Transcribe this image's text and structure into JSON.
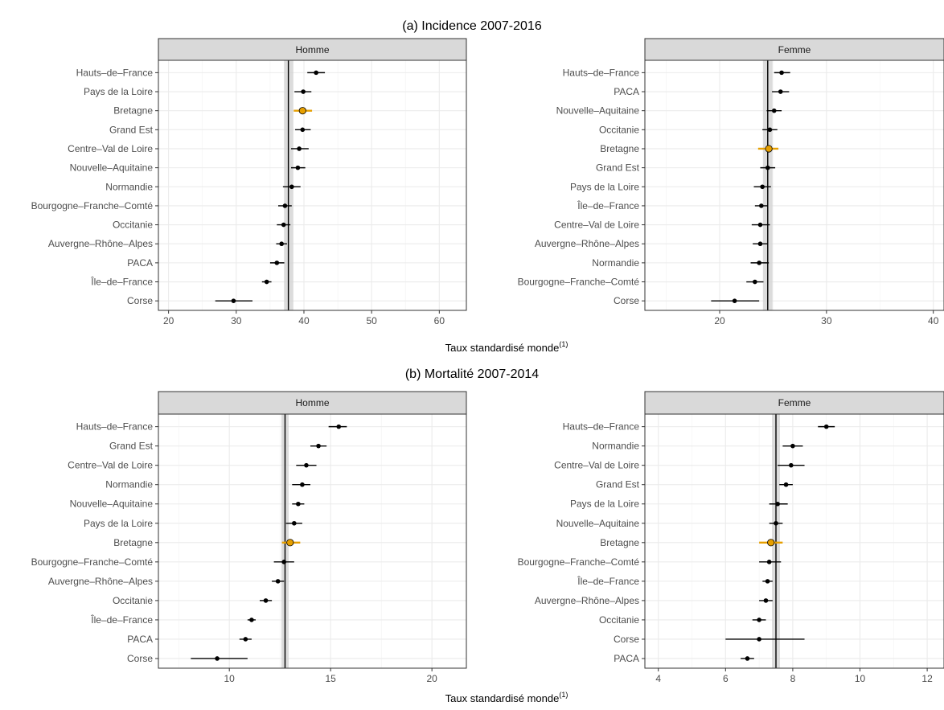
{
  "colors": {
    "highlight": "#E69F00",
    "point": "#000000",
    "strip_bg": "#D9D9D9",
    "grid": "#EBEBEB",
    "ref_band": "#D3D3D3"
  },
  "sections": [
    {
      "title": "(a) Incidence 2007-2016",
      "xlabel": "Taux standardisé monde",
      "xlabel_sup": "(1)"
    },
    {
      "title": "(b) Mortalité 2007-2014",
      "xlabel": "Taux standardisé monde",
      "xlabel_sup": "(1)"
    }
  ],
  "chart_data": [
    {
      "type": "dot-errorbar",
      "section": "(a) Incidence 2007-2016",
      "panel": "Homme",
      "xlim": [
        18.5,
        64
      ],
      "xticks": [
        20,
        30,
        40,
        50,
        60
      ],
      "reference": {
        "value": 37.7,
        "low": 37.3,
        "high": 38.2
      },
      "highlight": "Bretagne",
      "categories": [
        "Hauts–de–France",
        "Pays de la Loire",
        "Bretagne",
        "Grand Est",
        "Centre–Val de Loire",
        "Nouvelle–Aquitaine",
        "Normandie",
        "Bourgogne–Franche–Comté",
        "Occitanie",
        "Auvergne–Rhône–Alpes",
        "PACA",
        "Île–de–France",
        "Corse"
      ],
      "values": [
        41.8,
        39.9,
        39.8,
        39.8,
        39.3,
        39.1,
        38.2,
        37.2,
        37.0,
        36.7,
        36.0,
        34.5,
        29.6
      ],
      "low": [
        40.5,
        38.6,
        38.5,
        38.7,
        38.1,
        38.1,
        36.9,
        36.2,
        36.0,
        35.9,
        35.0,
        33.8,
        26.9
      ],
      "high": [
        43.1,
        41.1,
        41.2,
        41.0,
        40.7,
        40.2,
        39.5,
        38.2,
        38.0,
        37.5,
        37.1,
        35.2,
        32.4
      ]
    },
    {
      "type": "dot-errorbar",
      "section": "(a) Incidence 2007-2016",
      "panel": "Femme",
      "xlim": [
        13,
        41
      ],
      "xticks": [
        20,
        30,
        40
      ],
      "reference": {
        "value": 24.5,
        "low": 24.2,
        "high": 24.8
      },
      "highlight": "Bretagne",
      "categories": [
        "Hauts–de–France",
        "PACA",
        "Nouvelle–Aquitaine",
        "Occitanie",
        "Bretagne",
        "Grand Est",
        "Pays de la Loire",
        "Île–de–France",
        "Centre–Val de Loire",
        "Auvergne–Rhône–Alpes",
        "Normandie",
        "Bourgogne–Franche–Comté",
        "Corse"
      ],
      "values": [
        25.8,
        25.7,
        25.1,
        24.7,
        24.6,
        24.5,
        24.0,
        23.9,
        23.8,
        23.8,
        23.7,
        23.3,
        21.4
      ],
      "low": [
        25.1,
        24.9,
        24.4,
        24.0,
        23.6,
        23.8,
        23.2,
        23.3,
        23.0,
        23.1,
        22.9,
        22.5,
        19.2
      ],
      "high": [
        26.6,
        26.5,
        25.8,
        25.4,
        25.5,
        25.2,
        24.8,
        24.5,
        24.7,
        24.5,
        24.6,
        24.1,
        23.7
      ]
    },
    {
      "type": "dot-errorbar",
      "section": "(b) Mortalité 2007-2014",
      "panel": "Homme",
      "xlim": [
        6.5,
        21.7
      ],
      "xticks": [
        10,
        15,
        20
      ],
      "reference": {
        "value": 12.75,
        "low": 12.65,
        "high": 12.85
      },
      "highlight": "Bretagne",
      "categories": [
        "Hauts–de–France",
        "Grand Est",
        "Centre–Val de Loire",
        "Normandie",
        "Nouvelle–Aquitaine",
        "Pays de la Loire",
        "Bretagne",
        "Bourgogne–Franche–Comté",
        "Auvergne–Rhône–Alpes",
        "Occitanie",
        "Île–de–France",
        "PACA",
        "Corse"
      ],
      "values": [
        15.4,
        14.4,
        13.8,
        13.6,
        13.4,
        13.2,
        13.0,
        12.7,
        12.4,
        11.8,
        11.1,
        10.8,
        9.4
      ],
      "low": [
        14.9,
        14.0,
        13.3,
        13.1,
        13.1,
        12.8,
        12.6,
        12.2,
        12.1,
        11.5,
        10.9,
        10.5,
        8.1
      ],
      "high": [
        15.8,
        14.8,
        14.3,
        14.0,
        13.7,
        13.6,
        13.5,
        13.2,
        12.7,
        12.1,
        11.3,
        11.1,
        10.9
      ]
    },
    {
      "type": "dot-errorbar",
      "section": "(b) Mortalité 2007-2014",
      "panel": "Femme",
      "xlim": [
        3.6,
        12.5
      ],
      "xticks": [
        4,
        6,
        8,
        10,
        12
      ],
      "reference": {
        "value": 7.5,
        "low": 7.43,
        "high": 7.57
      },
      "highlight": "Bretagne",
      "categories": [
        "Hauts–de–France",
        "Normandie",
        "Centre–Val de Loire",
        "Grand Est",
        "Pays de la Loire",
        "Nouvelle–Aquitaine",
        "Bretagne",
        "Bourgogne–Franche–Comté",
        "Île–de–France",
        "Auvergne–Rhône–Alpes",
        "Occitanie",
        "Corse",
        "PACA"
      ],
      "values": [
        9.0,
        8.0,
        7.95,
        7.8,
        7.55,
        7.5,
        7.35,
        7.3,
        7.25,
        7.2,
        7.0,
        7.0,
        6.65
      ],
      "low": [
        8.75,
        7.7,
        7.55,
        7.6,
        7.3,
        7.3,
        7.0,
        7.0,
        7.1,
        7.0,
        6.8,
        6.0,
        6.45
      ],
      "high": [
        9.25,
        8.3,
        8.35,
        8.0,
        7.85,
        7.7,
        7.7,
        7.65,
        7.4,
        7.4,
        7.2,
        8.35,
        6.85
      ]
    }
  ]
}
